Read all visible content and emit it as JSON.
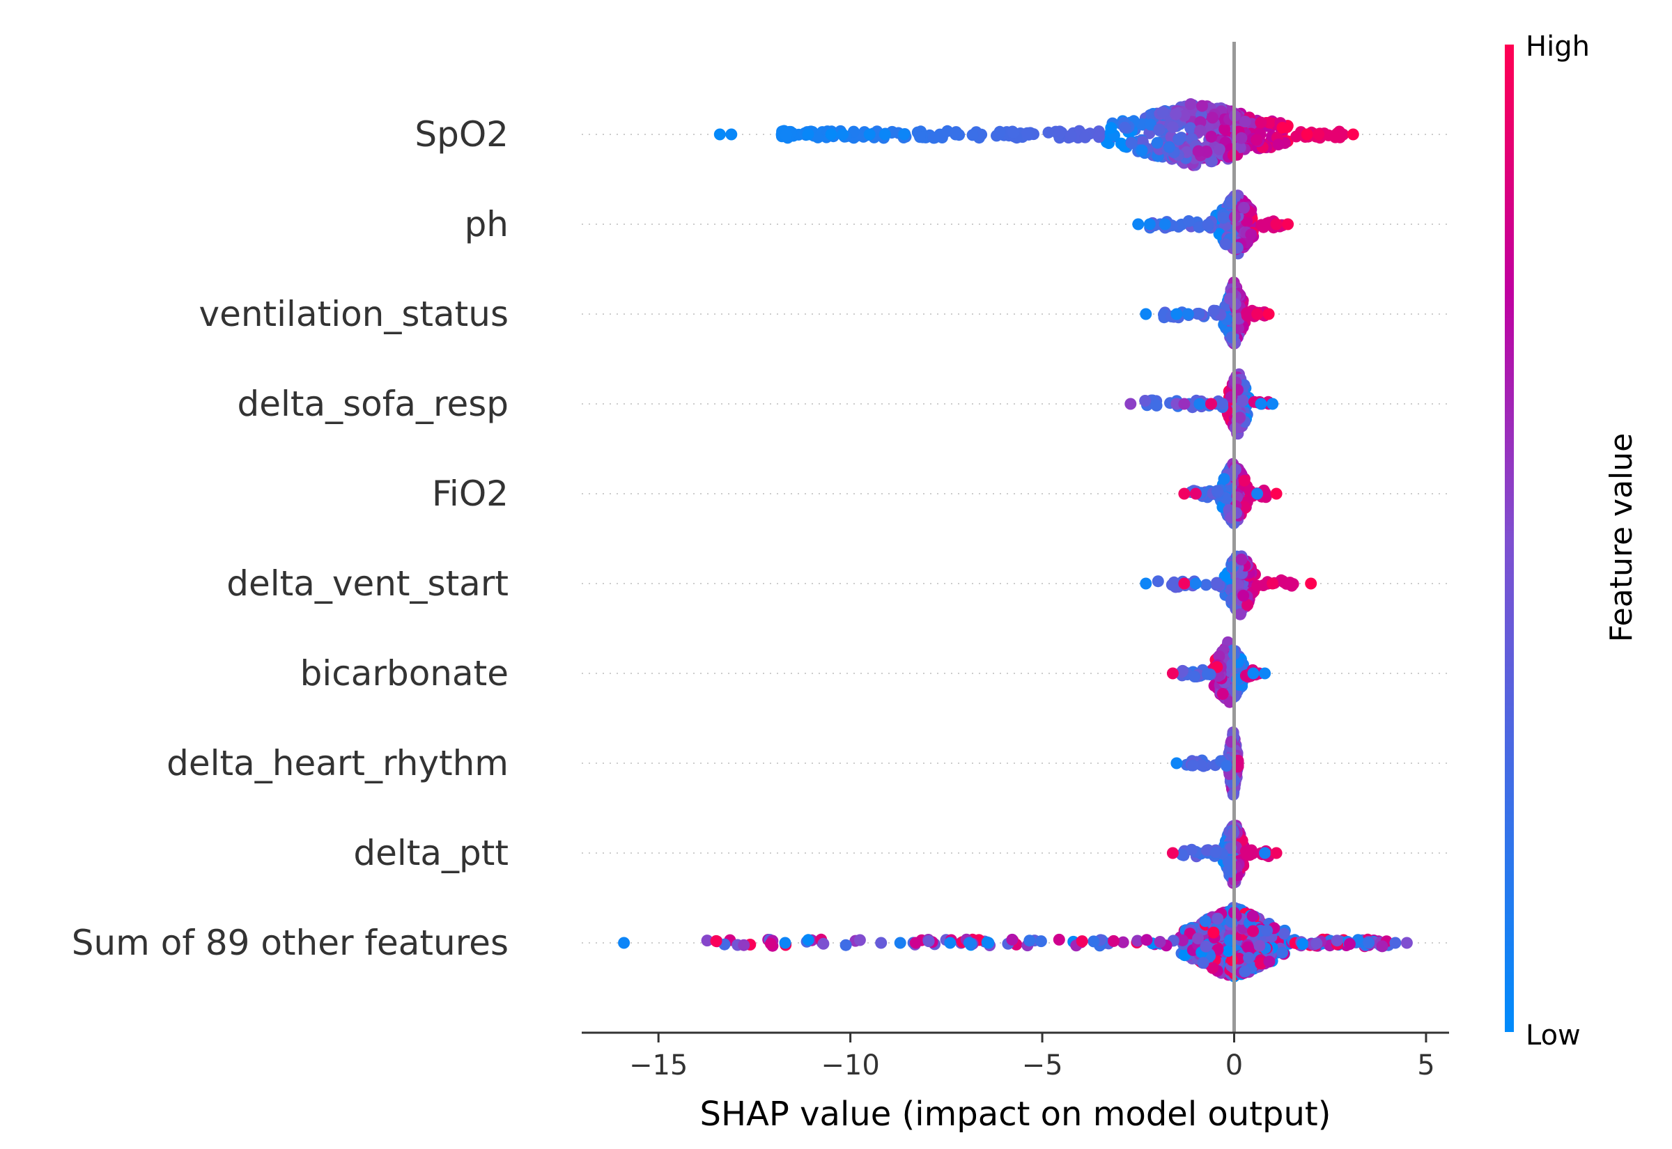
{
  "chart_data": {
    "type": "scatter",
    "subtype": "shap-beeswarm",
    "title": "",
    "xlabel": "SHAP value (impact on model output)",
    "xlim": [
      -17,
      5.6
    ],
    "xticks": [
      -15,
      -10,
      -5,
      0,
      5
    ],
    "xtick_labels": [
      "−15",
      "−10",
      "−5",
      "0",
      "5"
    ],
    "grid": false,
    "colorbar": {
      "title": "Feature value",
      "high_label": "High",
      "low_label": "Low",
      "low_color": "#008bfb",
      "high_color": "#ff0052",
      "position": "right"
    },
    "features": [
      {
        "name": "SpO2",
        "x_range": [
          -13.4,
          3.1
        ],
        "dense_range": [
          -3.5,
          1.6
        ],
        "points": [
          {
            "x": -13.4,
            "v": 0.02
          },
          {
            "x": -13.1,
            "v": 0.03
          },
          {
            "x": -11.1,
            "v": 0.03
          },
          {
            "x": -10.5,
            "v": 0.02
          },
          {
            "x": -10.2,
            "v": 0.04
          },
          {
            "x": -9.5,
            "v": 0.03
          },
          {
            "x": -9.1,
            "v": 0.04
          },
          {
            "x": -8.6,
            "v": 0.05
          },
          {
            "x": 1.9,
            "v": 1.0
          },
          {
            "x": 2.2,
            "v": 0.95
          },
          {
            "x": 3.1,
            "v": 1.0
          }
        ]
      },
      {
        "name": "ph",
        "x_range": [
          -2.5,
          1.4
        ],
        "dense_range": [
          -0.5,
          0.6
        ],
        "points": [
          {
            "x": -2.5,
            "v": 0.05
          },
          {
            "x": -2.2,
            "v": 0.06
          },
          {
            "x": -1.8,
            "v": 0.08
          },
          {
            "x": 1.1,
            "v": 0.95
          },
          {
            "x": 1.4,
            "v": 0.98
          }
        ]
      },
      {
        "name": "ventilation_status",
        "x_range": [
          -2.3,
          0.9
        ],
        "dense_range": [
          -0.3,
          0.3
        ],
        "points": [
          {
            "x": -2.3,
            "v": 0.05
          },
          {
            "x": -1.5,
            "v": 0.05
          },
          {
            "x": -1.2,
            "v": 0.1
          },
          {
            "x": 0.6,
            "v": 0.95
          },
          {
            "x": 0.9,
            "v": 1.0
          }
        ]
      },
      {
        "name": "delta_sofa_resp",
        "x_range": [
          -2.7,
          1.0
        ],
        "dense_range": [
          -0.2,
          0.4
        ],
        "points": [
          {
            "x": -2.7,
            "v": 0.55
          },
          {
            "x": -1.5,
            "v": 0.5
          },
          {
            "x": -1.3,
            "v": 0.6
          },
          {
            "x": -0.9,
            "v": 0.1
          },
          {
            "x": -0.6,
            "v": 0.9
          },
          {
            "x": 0.7,
            "v": 0.05
          },
          {
            "x": 1.0,
            "v": 0.05
          }
        ]
      },
      {
        "name": "FiO2",
        "x_range": [
          -1.3,
          1.1
        ],
        "dense_range": [
          -0.4,
          0.4
        ],
        "points": [
          {
            "x": -1.3,
            "v": 0.95
          },
          {
            "x": -1.0,
            "v": 0.9
          },
          {
            "x": 0.6,
            "v": 0.1
          },
          {
            "x": 1.1,
            "v": 1.0
          }
        ]
      },
      {
        "name": "delta_vent_start",
        "x_range": [
          -2.3,
          2.0
        ],
        "dense_range": [
          -0.3,
          0.6
        ],
        "points": [
          {
            "x": -2.3,
            "v": 0.05
          },
          {
            "x": -1.3,
            "v": 0.95
          },
          {
            "x": -1.0,
            "v": 0.1
          },
          {
            "x": 1.0,
            "v": 0.95
          },
          {
            "x": 2.0,
            "v": 1.0
          }
        ]
      },
      {
        "name": "bicarbonate",
        "x_range": [
          -1.6,
          0.8
        ],
        "dense_range": [
          -0.6,
          0.3
        ],
        "points": [
          {
            "x": -1.6,
            "v": 0.95
          },
          {
            "x": 0.5,
            "v": 0.05
          },
          {
            "x": 0.8,
            "v": 0.05
          }
        ]
      },
      {
        "name": "delta_heart_rhythm",
        "x_range": [
          -1.5,
          0.1
        ],
        "dense_range": [
          -0.15,
          0.1
        ],
        "points": [
          {
            "x": -1.5,
            "v": 0.05
          }
        ]
      },
      {
        "name": "delta_ptt",
        "x_range": [
          -1.6,
          1.1
        ],
        "dense_range": [
          -0.3,
          0.3
        ],
        "points": [
          {
            "x": -1.6,
            "v": 0.95
          },
          {
            "x": 0.8,
            "v": 0.1
          },
          {
            "x": 1.1,
            "v": 0.95
          }
        ]
      },
      {
        "name": "Sum of 89 other features",
        "x_range": [
          -15.9,
          4.5
        ],
        "dense_range": [
          -1.5,
          1.5
        ],
        "points": [
          {
            "x": -15.9,
            "v": 0.05
          },
          {
            "x": -11.7,
            "v": 0.05
          },
          {
            "x": -9.2,
            "v": 0.4
          },
          {
            "x": -8.7,
            "v": 0.1
          },
          {
            "x": -8.3,
            "v": 0.8
          },
          {
            "x": -7.4,
            "v": 0.05
          },
          {
            "x": -6.9,
            "v": 0.1
          },
          {
            "x": -6.4,
            "v": 0.05
          },
          {
            "x": 4.2,
            "v": 0.3
          },
          {
            "x": 4.5,
            "v": 0.5
          }
        ]
      }
    ]
  }
}
